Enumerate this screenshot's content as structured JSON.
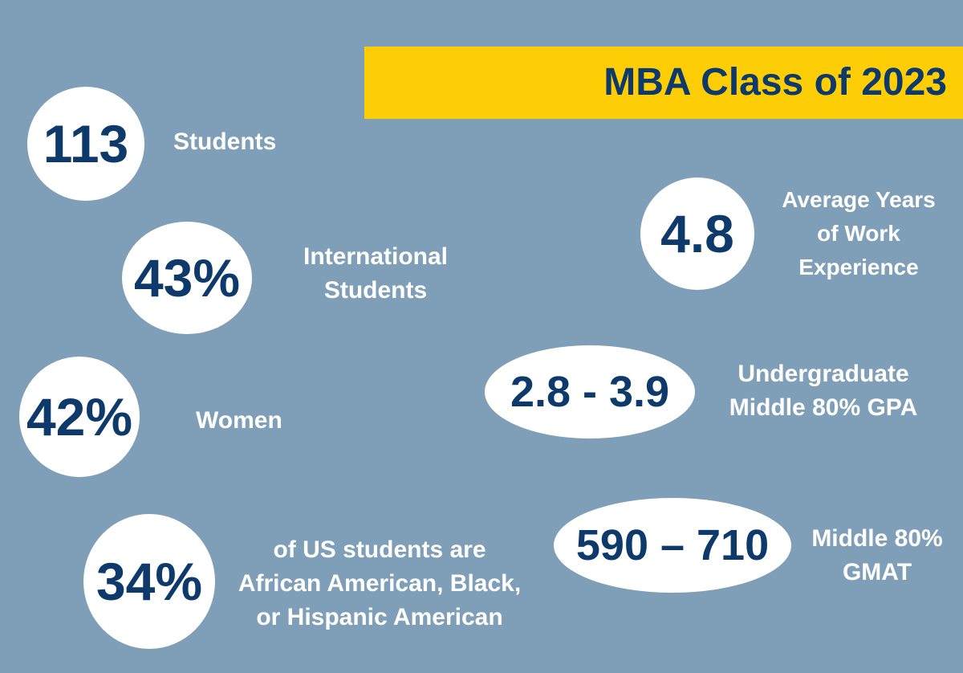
{
  "banner": {
    "title": "MBA Class of 2023"
  },
  "stats": {
    "students": {
      "value": "113",
      "label": "Students"
    },
    "international": {
      "value": "43%",
      "label_lines": [
        "International",
        "Students"
      ]
    },
    "women": {
      "value": "42%",
      "label": "Women"
    },
    "diversity": {
      "value": "34%",
      "label_lines": [
        "of US students are",
        "African American, Black,",
        "or Hispanic American"
      ]
    },
    "work_experience": {
      "value": "4.8",
      "label_lines": [
        "Average Years",
        "of Work",
        "Experience"
      ]
    },
    "gpa": {
      "value": "2.8 - 3.9",
      "label_lines": [
        "Undergraduate",
        "Middle 80% GPA"
      ]
    },
    "gmat": {
      "value": "590 – 710",
      "label_lines": [
        "Middle 80%",
        "GMAT"
      ]
    }
  },
  "colors": {
    "background": "#7f9fb8",
    "banner": "#fdcd06",
    "navy_text": "#0d3a6b",
    "bubble": "#ffffff",
    "label_text": "#ffffff"
  }
}
